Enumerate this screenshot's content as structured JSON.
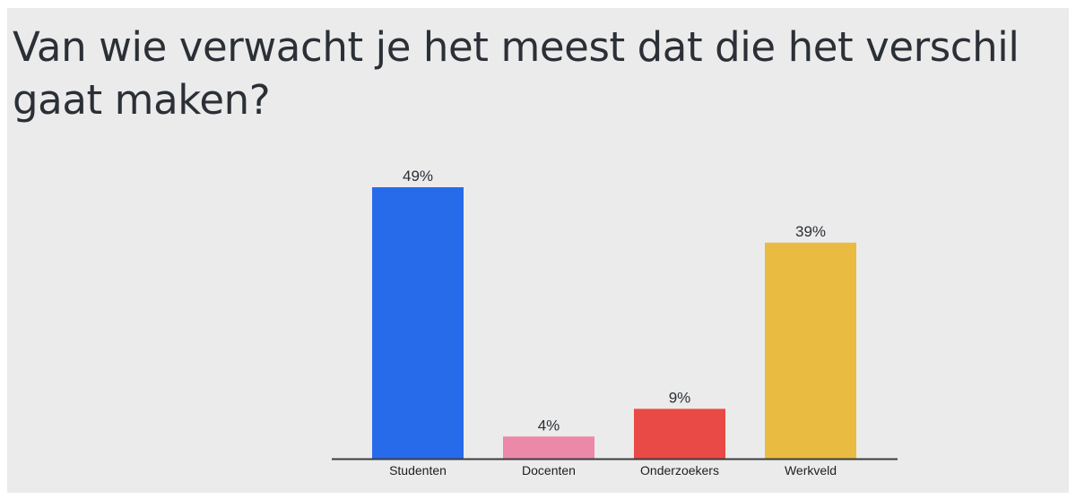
{
  "slide": {
    "title": "Van wie verwacht je het meest dat die het verschil gaat maken?"
  },
  "chart_data": {
    "type": "bar",
    "categories": [
      "Studenten",
      "Docenten",
      "Onderzoekers",
      "Werkveld"
    ],
    "values": [
      49,
      4,
      9,
      39
    ],
    "value_labels": [
      "49%",
      "4%",
      "9%",
      "39%"
    ],
    "unit": "%",
    "colors": [
      "#276bea",
      "#ec88a8",
      "#e94a45",
      "#e9bb40"
    ],
    "ylim": [
      0,
      49
    ],
    "grid": false,
    "legend": "none"
  }
}
